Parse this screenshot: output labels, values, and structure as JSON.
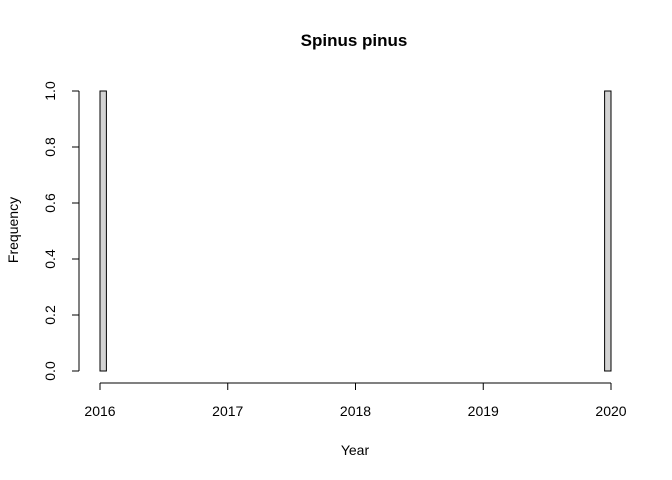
{
  "chart_data": {
    "type": "bar",
    "title": "Spinus pinus",
    "xlabel": "Year",
    "ylabel": "Frequency",
    "x_ticks": [
      "2016",
      "2017",
      "2018",
      "2019",
      "2020"
    ],
    "y_ticks": [
      "0.0",
      "0.2",
      "0.4",
      "0.6",
      "0.8",
      "1.0"
    ],
    "xlim": [
      2016,
      2020
    ],
    "ylim": [
      0,
      1
    ],
    "bin_width": 0.05,
    "bins": [
      {
        "start": 2016.0,
        "end": 2016.05,
        "count": 1
      },
      {
        "start": 2019.95,
        "end": 2020.0,
        "count": 1
      }
    ],
    "grid": false,
    "bar_color": "#d3d3d3"
  }
}
